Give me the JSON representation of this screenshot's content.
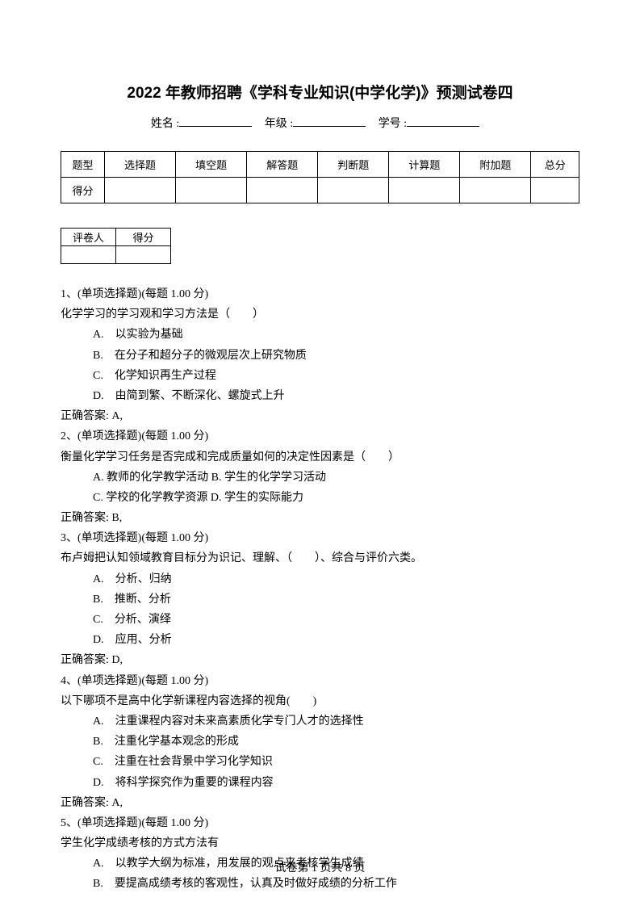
{
  "title": "2022 年教师招聘《学科专业知识(中学化学)》预测试卷四",
  "info": {
    "name_label": "姓名 :",
    "grade_label": "年级 :",
    "id_label": "学号 :"
  },
  "score_table": {
    "cols": [
      "题型",
      "选择题",
      "填空题",
      "解答题",
      "判断题",
      "计算题",
      "附加题",
      "总分"
    ],
    "row2_first": "得分"
  },
  "small_table": {
    "header": [
      "评卷人",
      "得分"
    ]
  },
  "questions": [
    {
      "num": "1、(单项选择题)(每题 1.00 分)",
      "stem": "化学学习的学习观和学习方法是（　　）",
      "options": [
        "A.　以实验为基础",
        "B.　在分子和超分子的微观层次上研究物质",
        "C.　化学知识再生产过程",
        "D.　由简到繁、不断深化、螺旋式上升"
      ],
      "answer": "正确答案: A,"
    },
    {
      "num": "2、(单项选择题)(每题 1.00 分)",
      "stem": "衡量化学学习任务是否完成和完成质量如何的决定性因素是（　　）",
      "options_inline": [
        "A. 教师的化学教学活动 B. 学生的化学学习活动",
        "C. 学校的化学教学资源 D. 学生的实际能力"
      ],
      "answer": "正确答案: B,"
    },
    {
      "num": "3、(单项选择题)(每题 1.00 分)",
      "stem": "布卢姆把认知领域教育目标分为识记、理解、（　　）、综合与评价六类。",
      "options": [
        "A.　分析、归纳",
        "B.　推断、分析",
        "C.　分析、演绎",
        "D.　应用、分析"
      ],
      "answer": "正确答案: D,"
    },
    {
      "num": "4、(单项选择题)(每题 1.00 分)",
      "stem": "以下哪项不是高中化学新课程内容选择的视角(　　)",
      "options": [
        "A.　注重课程内容对未来高素质化学专门人才的选择性",
        "B.　注重化学基本观念的形成",
        "C.　注重在社会背景中学习化学知识",
        "D.　将科学探究作为重要的课程内容"
      ],
      "answer": "正确答案: A,"
    },
    {
      "num": "5、(单项选择题)(每题 1.00 分)",
      "stem": "学生化学成绩考核的方式方法有",
      "options": [
        "A.　以教学大纲为标准，用发展的观点来考核学生成绩",
        "B.　要提高成绩考核的客观性，认真及时做好成绩的分析工作"
      ]
    }
  ],
  "footer": "试卷第 1 页共 8 页"
}
